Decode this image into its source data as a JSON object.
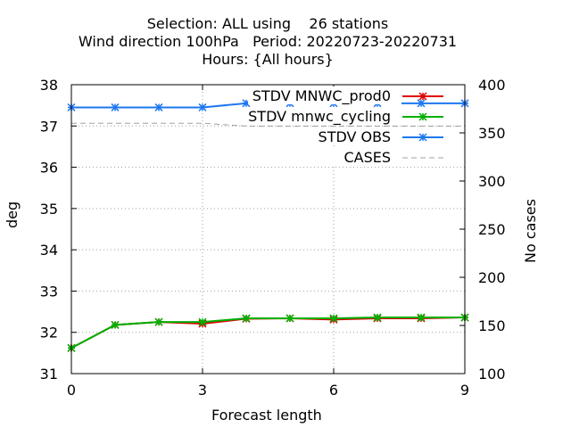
{
  "chart_data": {
    "type": "line",
    "title_lines": [
      "Selection: ALL using    26 stations",
      "Wind direction 100hPa   Period: 20220723-20220731",
      "Hours: {All hours}"
    ],
    "xlabel": "Forecast length",
    "ylabel": "deg",
    "y2label": "No cases",
    "xlim": [
      0,
      9
    ],
    "ylim": [
      31,
      38
    ],
    "y2lim": [
      100,
      400
    ],
    "xticks": [
      0,
      3,
      6,
      9
    ],
    "yticks": [
      31,
      32,
      33,
      34,
      35,
      36,
      37,
      38
    ],
    "y2ticks": [
      100,
      150,
      200,
      250,
      300,
      350,
      400
    ],
    "grid": true,
    "legend_position": "top-right",
    "x": [
      0,
      1,
      2,
      3,
      4,
      5,
      6,
      7,
      8,
      9
    ],
    "series": [
      {
        "name": "STDV MNWC_prod0",
        "axis": "y1",
        "color": "#e00000",
        "values": [
          31.62,
          32.18,
          32.25,
          32.21,
          32.33,
          32.34,
          32.31,
          32.34,
          32.34,
          32.36
        ]
      },
      {
        "name": "STDV mnwc_cycling",
        "axis": "y1",
        "color": "#00b000",
        "values": [
          31.62,
          32.18,
          32.25,
          32.25,
          32.34,
          32.34,
          32.34,
          32.36,
          32.36,
          32.36
        ]
      },
      {
        "name": "STDV OBS",
        "axis": "y1",
        "color": "#1e78f0",
        "values": [
          37.45,
          37.45,
          37.45,
          37.45,
          37.55,
          37.55,
          37.55,
          37.55,
          37.55,
          37.55
        ]
      },
      {
        "name": "CASES",
        "axis": "y2",
        "color": "#a0a0a0",
        "values": [
          360,
          360,
          360,
          360,
          357,
          357,
          357,
          357,
          357,
          357
        ]
      }
    ]
  }
}
